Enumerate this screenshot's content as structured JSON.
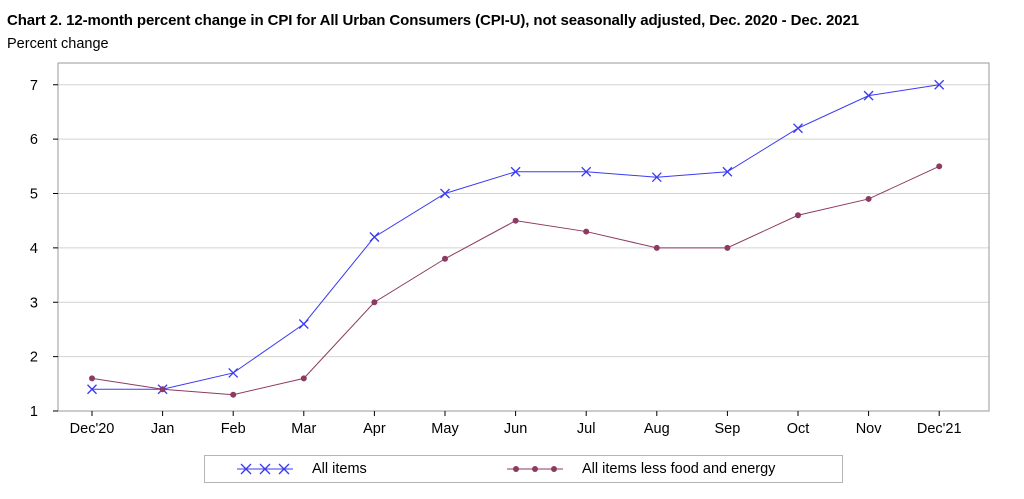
{
  "title": "Chart 2. 12-month percent change in CPI for All Urban Consumers (CPI-U), not seasonally adjusted, Dec. 2020 - Dec. 2021",
  "subtitle": "Percent change",
  "chart_data": {
    "type": "line",
    "title": "Chart 2. 12-month percent change in CPI for All Urban Consumers (CPI-U), not seasonally adjusted, Dec. 2020 - Dec. 2021",
    "ylabel": "Percent change",
    "xlabel": "",
    "categories": [
      "Dec'20",
      "Jan",
      "Feb",
      "Mar",
      "Apr",
      "May",
      "Jun",
      "Jul",
      "Aug",
      "Sep",
      "Oct",
      "Nov",
      "Dec'21"
    ],
    "ylim": [
      1,
      7.4
    ],
    "yticks": [
      1,
      2,
      3,
      4,
      5,
      6,
      7
    ],
    "grid": "horizontal",
    "legend": "bottom",
    "series": [
      {
        "name": "All items",
        "color": "#3b3bf0",
        "marker": "x",
        "values": [
          1.4,
          1.4,
          1.7,
          2.6,
          4.2,
          5.0,
          5.4,
          5.4,
          5.3,
          5.4,
          6.2,
          6.8,
          7.0
        ]
      },
      {
        "name": "All items less food and energy",
        "color": "#8c3a62",
        "marker": "dot",
        "values": [
          1.6,
          1.4,
          1.3,
          1.6,
          3.0,
          3.8,
          4.5,
          4.3,
          4.0,
          4.0,
          4.6,
          4.9,
          5.5
        ]
      }
    ]
  }
}
